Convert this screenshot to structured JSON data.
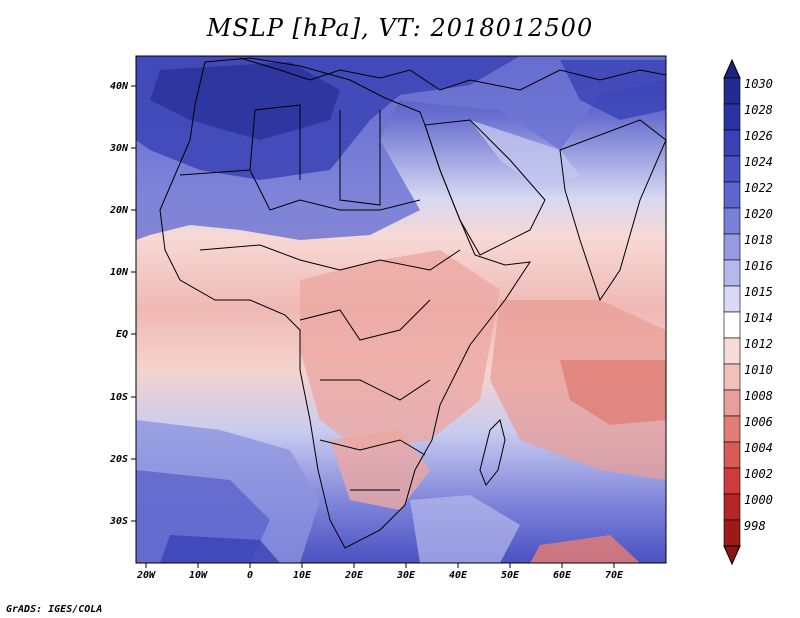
{
  "title": "MSLP [hPa], VT: 2018012500",
  "credit": "GrADS: IGES/COLA",
  "lon_ticks": [
    "20W",
    "10W",
    "0",
    "10E",
    "20E",
    "30E",
    "40E",
    "50E",
    "60E",
    "70E"
  ],
  "lat_ticks": [
    "40N",
    "30N",
    "20N",
    "10N",
    "EQ",
    "10S",
    "20S",
    "30S"
  ],
  "colorbar": {
    "labels": [
      "1030",
      "1028",
      "1026",
      "1024",
      "1022",
      "1020",
      "1018",
      "1016",
      "1015",
      "1014",
      "1012",
      "1010",
      "1008",
      "1006",
      "1004",
      "1002",
      "1000",
      "998"
    ],
    "colors": [
      "#242a8e",
      "#2b33a3",
      "#3a42b5",
      "#4b52c3",
      "#5f66cd",
      "#7980d8",
      "#969be2",
      "#b6b9ec",
      "#d8daf5",
      "#ffffff",
      "#f8dcd9",
      "#f1c0bb",
      "#e89f99",
      "#e07d77",
      "#d75b57",
      "#cd3c3b",
      "#b52626",
      "#9e1a1a"
    ],
    "top_cap": "#1f2380",
    "bottom_cap": "#8a1515"
  }
}
